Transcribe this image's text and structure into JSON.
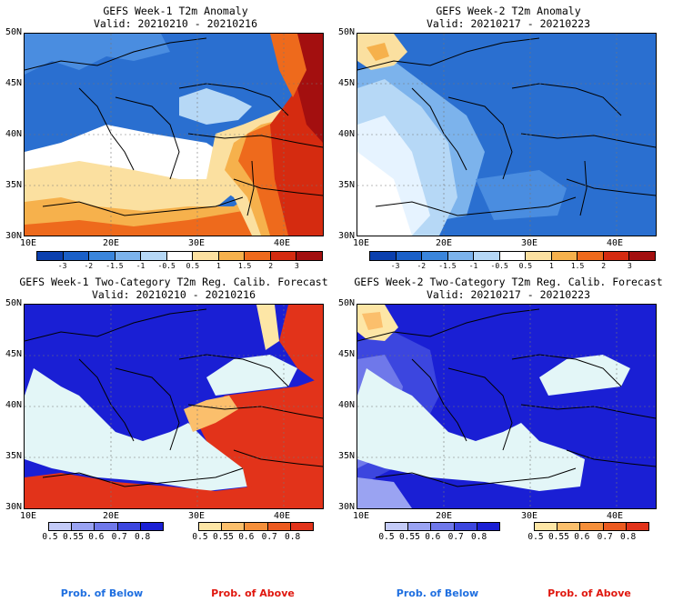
{
  "panels": [
    {
      "title1": "GEFS Week-1 T2m Anomaly",
      "title2": "Valid: 20210210 - 20210216"
    },
    {
      "title1": "GEFS Week-2 T2m Anomaly",
      "title2": "Valid: 20210217 - 20210223"
    },
    {
      "title1": "GEFS Week-1 Two-Category T2m Reg. Calib. Forecast",
      "title2": "Valid: 20210210 - 20210216"
    },
    {
      "title1": "GEFS Week-2 Two-Category T2m Reg. Calib. Forecast",
      "title2": "Valid: 20210217 - 20210223"
    }
  ],
  "lat_labels": [
    "50N",
    "45N",
    "40N",
    "35N",
    "30N"
  ],
  "lon_labels": [
    "10E",
    "20E",
    "30E",
    "40E"
  ],
  "anomaly_colorbar": {
    "labels": [
      "-3",
      "-2",
      "-1.5",
      "-1",
      "-0.5",
      "0.5",
      "1",
      "1.5",
      "2",
      "3"
    ],
    "colors": [
      "#0a3fae",
      "#1a60c8",
      "#3a85dc",
      "#7cb3ec",
      "#b6d8f6",
      "#ffffff",
      "#fbe0a0",
      "#f6b14c",
      "#ee6a1c",
      "#d52b10",
      "#a30f0f"
    ]
  },
  "below_colorbar": {
    "labels": [
      "0.5",
      "0.55",
      "0.6",
      "0.7",
      "0.8"
    ],
    "colors": [
      "#c4cbf8",
      "#9aa3f2",
      "#6f78ea",
      "#3c46df",
      "#1a1fd4"
    ]
  },
  "above_colorbar": {
    "labels": [
      "0.5",
      "0.55",
      "0.6",
      "0.7",
      "0.8"
    ],
    "colors": [
      "#fde6a6",
      "#fbbf6c",
      "#f58f3a",
      "#ec5a1f",
      "#e2331a"
    ]
  },
  "footer": {
    "below": "Prob. of Below",
    "above": "Prob. of Above"
  },
  "colors": {
    "below_text": "#1f6fe0",
    "above_text": "#e0170e",
    "sea_light": "#e3f6f7"
  }
}
